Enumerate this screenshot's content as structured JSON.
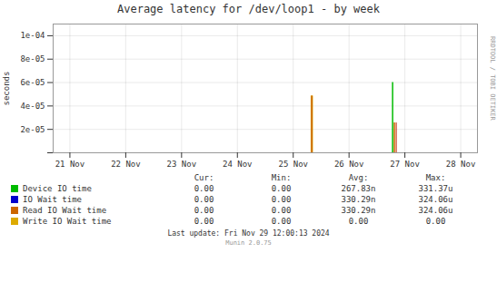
{
  "chart_data": {
    "type": "spike",
    "title": "Average latency for /dev/loop1 - by week",
    "ylabel": "seconds",
    "xlim": [
      -0.3,
      7.3
    ],
    "xticks": [
      {
        "value": 0,
        "label": "21 Nov"
      },
      {
        "value": 1,
        "label": "22 Nov"
      },
      {
        "value": 2,
        "label": "23 Nov"
      },
      {
        "value": 3,
        "label": "24 Nov"
      },
      {
        "value": 4,
        "label": "25 Nov"
      },
      {
        "value": 5,
        "label": "26 Nov"
      },
      {
        "value": 6,
        "label": "27 Nov"
      },
      {
        "value": 7,
        "label": "28 Nov"
      }
    ],
    "ylim": [
      0,
      0.00011
    ],
    "yticks": [
      {
        "value": 0,
        "label": null
      },
      {
        "value": 2e-05,
        "label": "2e-05"
      },
      {
        "value": 4e-05,
        "label": "4e-05"
      },
      {
        "value": 6e-05,
        "label": "6e-05"
      },
      {
        "value": 8e-05,
        "label": "8e-05"
      },
      {
        "value": 0.0001,
        "label": "1e-04"
      }
    ],
    "grid": true,
    "legend": "bottom",
    "series": [
      {
        "name": "Device IO time",
        "color": "#00bb00",
        "x": [
          5.78
        ],
        "values": [
          6e-05
        ],
        "stats": [
          {
            "value": 0,
            "label": "0.00"
          },
          {
            "value": 0,
            "label": "0.00"
          },
          {
            "value": 2.6783e-07,
            "label": "267.83n"
          },
          {
            "value": 0.00033137,
            "label": "331.37u"
          }
        ]
      },
      {
        "name": "IO Wait time",
        "color": "#0000cc",
        "x": [],
        "values": [],
        "stats": [
          {
            "value": 0,
            "label": "0.00"
          },
          {
            "value": 0,
            "label": "0.00"
          },
          {
            "value": 3.3029e-07,
            "label": "330.29n"
          },
          {
            "value": 0.00032406,
            "label": "324.06u"
          }
        ]
      },
      {
        "name": "Read IO Wait time",
        "color": "#cc6600",
        "x": [
          4.3,
          5.78
        ],
        "values": [
          4.85e-05,
          2.55e-05
        ],
        "stats": [
          {
            "value": 0,
            "label": "0.00"
          },
          {
            "value": 0,
            "label": "0.00"
          },
          {
            "value": 3.3029e-07,
            "label": "330.29n"
          },
          {
            "value": 0.00032406,
            "label": "324.06u"
          }
        ]
      },
      {
        "name": "Write IO Wait time",
        "color": "#ddaa00",
        "x": [
          4.3
        ],
        "values": [
          4.85e-05
        ],
        "stats": [
          {
            "value": 0,
            "label": "0.00"
          },
          {
            "value": 0,
            "label": "0.00"
          },
          {
            "value": 0,
            "label": "0.00"
          },
          {
            "value": 0,
            "label": "0.00"
          }
        ]
      },
      {
        "color": "#bb2200",
        "x": [
          5.78
        ],
        "values": [
          2.55e-05
        ]
      }
    ],
    "stats_headers": [
      "Cur:",
      "Min:",
      "Avg:",
      "Max:"
    ],
    "footer": "Last update: Fri Nov 29 12:00:13 2024",
    "watermark": "Munin 2.0.75",
    "annotations": [
      "RRDTOOL / TOBI OETIKER"
    ]
  }
}
